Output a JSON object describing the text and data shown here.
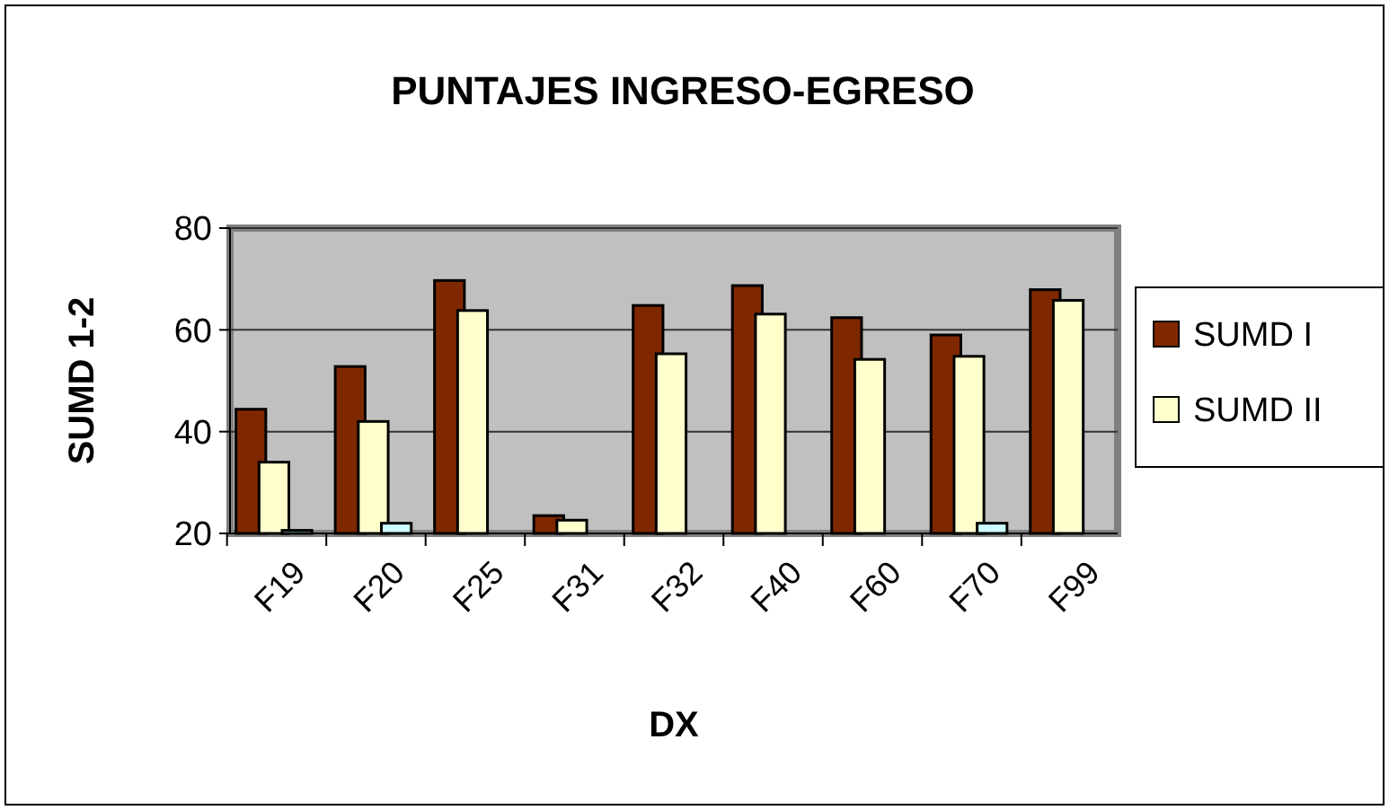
{
  "chart_data": {
    "type": "bar",
    "title": "PUNTAJES INGRESO-EGRESO",
    "xlabel": "DX",
    "ylabel": "SUMD 1-2",
    "categories": [
      "F19",
      "F20",
      "F25",
      "F31",
      "F32",
      "F40",
      "F60",
      "F70",
      "F99"
    ],
    "series": [
      {
        "name": "SUMD I",
        "color": "#7f2800",
        "values": [
          44.4,
          52.8,
          69.7,
          23.5,
          64.8,
          68.7,
          62.4,
          59,
          67.9
        ]
      },
      {
        "name": "SUMD II",
        "color": "#ffffcc",
        "values": [
          34,
          42,
          63.8,
          22.6,
          55.3,
          63.1,
          54.2,
          54.8,
          65.8
        ]
      },
      {
        "color": "#ccffff",
        "values": [
          20.6,
          22,
          null,
          null,
          null,
          null,
          null,
          22,
          null
        ]
      }
    ],
    "ylim": [
      20,
      80
    ],
    "yticks": [
      20,
      40,
      60,
      80
    ],
    "grid": "y",
    "legend": "right"
  }
}
